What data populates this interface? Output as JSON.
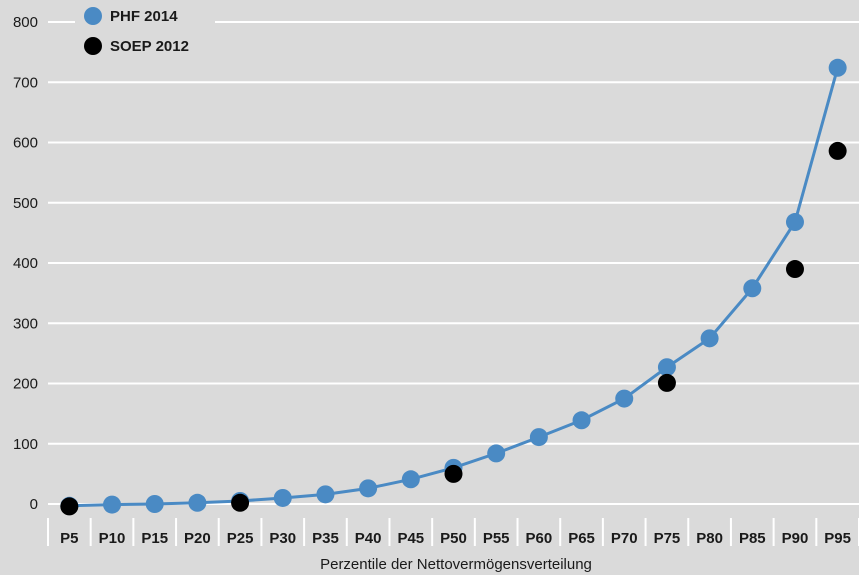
{
  "chart_data": {
    "type": "line",
    "xlabel": "Perzentile der Nettovermögensverteilung",
    "ylabel": "",
    "ylim": [
      0,
      800
    ],
    "yticks": [
      0,
      100,
      200,
      300,
      400,
      500,
      600,
      700,
      800
    ],
    "grid": true,
    "legend_position": "top-left",
    "categories": [
      "P5",
      "P10",
      "P15",
      "P20",
      "P25",
      "P30",
      "P35",
      "P40",
      "P45",
      "P50",
      "P55",
      "P60",
      "P65",
      "P70",
      "P75",
      "P80",
      "P85",
      "P90",
      "P95"
    ],
    "series": [
      {
        "name": "PHF 2014",
        "style": "line-markers",
        "color": "#4A8AC4",
        "values": [
          -3,
          -1,
          0,
          2,
          5,
          10,
          16,
          26,
          41,
          60,
          84,
          111,
          139,
          175,
          227,
          275,
          358,
          468,
          724
        ]
      },
      {
        "name": "SOEP 2012",
        "style": "markers",
        "color": "#000000",
        "values": [
          -4,
          null,
          null,
          null,
          2,
          null,
          null,
          null,
          null,
          50,
          null,
          null,
          null,
          null,
          201,
          null,
          null,
          390,
          586
        ]
      }
    ]
  },
  "colors": {
    "plot_background": "#DADADA",
    "gridline": "#FFFFFF"
  }
}
